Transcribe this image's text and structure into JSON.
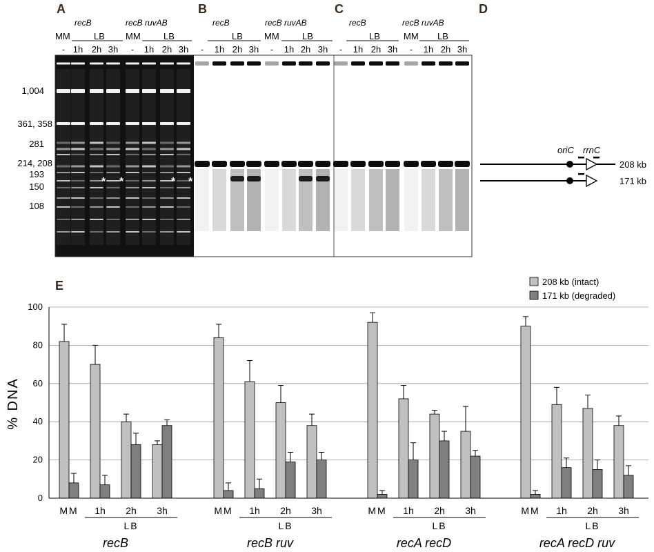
{
  "panels": {
    "A": {
      "letter": "A",
      "strains": [
        "recB",
        "recB ruvAB"
      ],
      "mm_label": "MM",
      "lb_label": "LB",
      "lane_labels": [
        "-",
        "1h",
        "2h",
        "3h",
        "-",
        "1h",
        "2h",
        "3h"
      ],
      "size_markers": [
        "1,004",
        "361, 358",
        "281",
        "214, 208",
        "193",
        "150",
        "108"
      ],
      "asterisk": "*"
    },
    "B": {
      "letter": "B",
      "strains": [
        "recB",
        "recB ruvAB"
      ],
      "mm_label": "MM",
      "lb_label": "LB",
      "lane_labels": [
        "-",
        "1h",
        "2h",
        "3h",
        "-",
        "1h",
        "2h",
        "3h"
      ]
    },
    "C": {
      "letter": "C",
      "strains": [
        "recB",
        "recB ruvAB"
      ],
      "mm_label": "MM",
      "lb_label": "LB",
      "lane_labels": [
        "-",
        "1h",
        "2h",
        "3h",
        "-",
        "1h",
        "2h",
        "3h"
      ]
    },
    "D": {
      "letter": "D",
      "oric": "oriC",
      "rrnc": "rrnC",
      "fragment_labels": [
        "208 kb",
        "171 kb"
      ]
    },
    "E": {
      "letter": "E"
    }
  },
  "colors": {
    "intact": "#c0c0c0",
    "degraded": "#7f7f7f",
    "gel": "#111111"
  },
  "chart_data": {
    "type": "bar",
    "ylabel": "% DNA",
    "ylim": [
      0,
      100
    ],
    "yticks": [
      0,
      20,
      40,
      60,
      80,
      100
    ],
    "grid": true,
    "legend_position": "top-right",
    "series": [
      {
        "name": "208 kb (intact)",
        "color": "#c0c0c0"
      },
      {
        "name": "171 kb (degraded)",
        "color": "#7f7f7f"
      }
    ],
    "groups": [
      {
        "name": "recB",
        "lb_label": "LB",
        "categories": [
          "MM",
          "1h",
          "2h",
          "3h"
        ],
        "intact": [
          82,
          70,
          40,
          28
        ],
        "intact_err": [
          9,
          10,
          4,
          2
        ],
        "degraded": [
          8,
          7,
          28,
          38
        ],
        "degraded_err": [
          5,
          5,
          6,
          3
        ]
      },
      {
        "name": "recB ruv",
        "lb_label": "LB",
        "categories": [
          "MM",
          "1h",
          "2h",
          "3h"
        ],
        "intact": [
          84,
          61,
          50,
          38
        ],
        "intact_err": [
          7,
          11,
          9,
          6
        ],
        "degraded": [
          4,
          5,
          19,
          20
        ],
        "degraded_err": [
          4,
          5,
          5,
          4
        ]
      },
      {
        "name": "recA recD",
        "lb_label": "LB",
        "categories": [
          "MM",
          "1h",
          "2h",
          "3h"
        ],
        "intact": [
          92,
          52,
          44,
          35
        ],
        "intact_err": [
          5,
          7,
          2,
          13
        ],
        "degraded": [
          2,
          20,
          30,
          22
        ],
        "degraded_err": [
          2,
          9,
          5,
          3
        ]
      },
      {
        "name": "recA recD ruv",
        "lb_label": "LB",
        "categories": [
          "MM",
          "1h",
          "2h",
          "3h"
        ],
        "intact": [
          90,
          49,
          47,
          38
        ],
        "intact_err": [
          5,
          9,
          7,
          5
        ],
        "degraded": [
          2,
          16,
          15,
          12
        ],
        "degraded_err": [
          2,
          5,
          5,
          5
        ]
      }
    ]
  }
}
